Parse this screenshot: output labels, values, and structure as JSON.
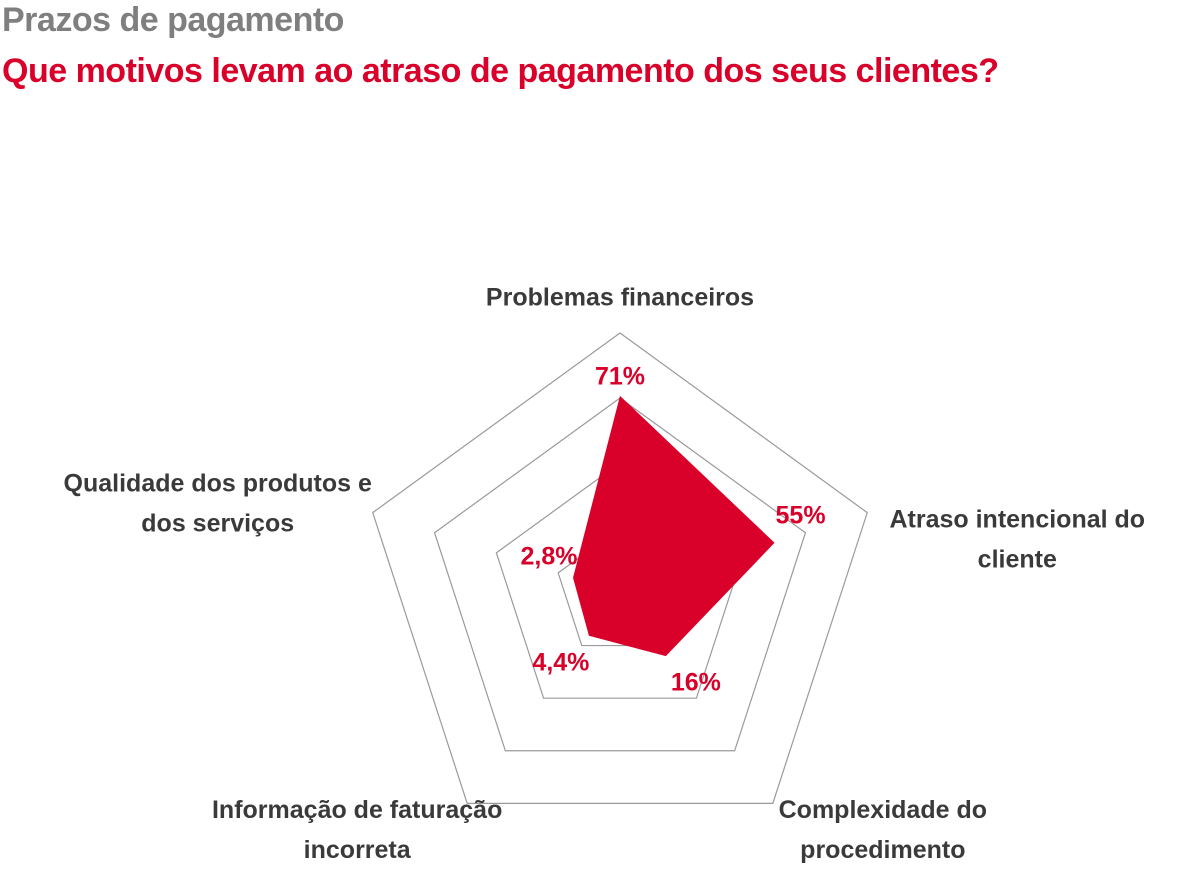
{
  "header": {
    "kicker": "Prazos de pagamento",
    "title": "Que motivos levam ao atraso de pagamento dos seus clientes?"
  },
  "colors": {
    "kicker": "#7f7f7f",
    "title": "#d9002a",
    "data_fill": "#d9002a",
    "value_label": "#d9002a",
    "category_label": "#3a3a3a",
    "grid": "#9a9a9a"
  },
  "chart_data": {
    "type": "radar",
    "title": "Que motivos levam ao atraso de pagamento dos seus clientes?",
    "categories": [
      [
        "Problemas financeiros"
      ],
      [
        "Atraso intencional do",
        "cliente"
      ],
      [
        "Complexidade do",
        "procedimento"
      ],
      [
        "Informação de faturação",
        "incorreta"
      ],
      [
        "Qualidade dos produtos e",
        "dos serviços"
      ]
    ],
    "values": [
      71,
      55,
      16,
      4.4,
      2.8
    ],
    "value_labels": [
      "71%",
      "55%",
      "16%",
      "4,4%",
      "2,8%"
    ],
    "rlim": [
      -20,
      100
    ],
    "grid_rings": 4,
    "legend": "none"
  }
}
